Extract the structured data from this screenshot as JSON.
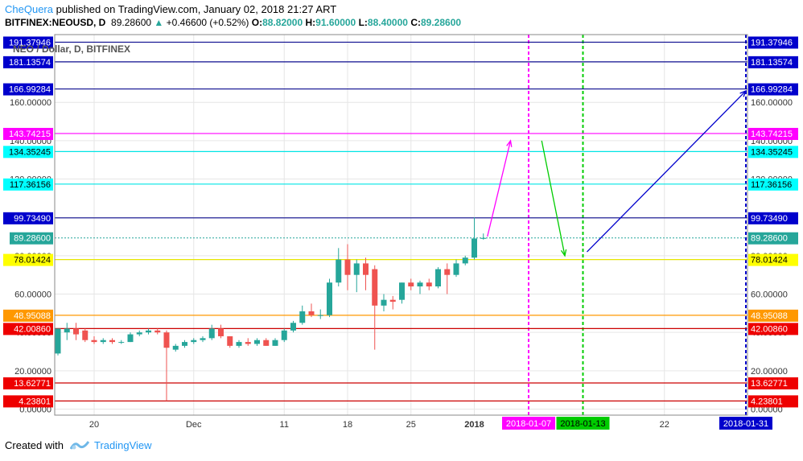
{
  "header": {
    "author": "CheQuera",
    "published_text": "published on TradingView.com, January 02, 2018 21:27 ART",
    "symbol": "BITFINEX:NEOUSD, D",
    "price": "89.28600",
    "change": "+0.46600 (+0.52%)",
    "o_label": "O:",
    "o_value": "88.82000",
    "h_label": "H:",
    "h_value": "91.60000",
    "l_label": "L:",
    "l_value": "88.40000",
    "c_label": "C:",
    "c_value": "89.28600"
  },
  "footer": {
    "created_with": "Created with",
    "brand": "TradingView"
  },
  "chart_data": {
    "type": "candlestick",
    "title": "NEO / Dollar, D, BITFINEX",
    "y_axis_ticks": [
      "0.00000",
      "20.00000",
      "40.00000",
      "60.00000",
      "80.00000",
      "100.00000",
      "120.00000",
      "140.00000",
      "160.00000"
    ],
    "x_axis_ticks": [
      "20",
      "Dec",
      "11",
      "18",
      "25",
      "2018",
      "22"
    ],
    "ylim": [
      0,
      194
    ],
    "candles": [
      {
        "o": 29,
        "h": 42,
        "l": 28,
        "c": 42
      },
      {
        "o": 40,
        "h": 45,
        "l": 36,
        "c": 42
      },
      {
        "o": 42,
        "h": 45,
        "l": 36,
        "c": 39
      },
      {
        "o": 41,
        "h": 42,
        "l": 35,
        "c": 36
      },
      {
        "o": 36,
        "h": 38,
        "l": 34,
        "c": 35
      },
      {
        "o": 35,
        "h": 37,
        "l": 34,
        "c": 36
      },
      {
        "o": 36,
        "h": 37,
        "l": 34,
        "c": 35
      },
      {
        "o": 35,
        "h": 36,
        "l": 34,
        "c": 35
      },
      {
        "o": 35,
        "h": 40,
        "l": 35,
        "c": 39
      },
      {
        "o": 39,
        "h": 41,
        "l": 38,
        "c": 40
      },
      {
        "o": 40,
        "h": 42,
        "l": 39,
        "c": 41
      },
      {
        "o": 41,
        "h": 42,
        "l": 39,
        "c": 40
      },
      {
        "o": 40,
        "h": 41,
        "l": 4.3,
        "c": 32
      },
      {
        "o": 31,
        "h": 34,
        "l": 30,
        "c": 33
      },
      {
        "o": 33,
        "h": 36,
        "l": 32,
        "c": 35
      },
      {
        "o": 35,
        "h": 37,
        "l": 34,
        "c": 36
      },
      {
        "o": 36,
        "h": 38,
        "l": 35,
        "c": 37
      },
      {
        "o": 37,
        "h": 44,
        "l": 36,
        "c": 42
      },
      {
        "o": 42,
        "h": 44,
        "l": 37,
        "c": 38
      },
      {
        "o": 38,
        "h": 38,
        "l": 32,
        "c": 33
      },
      {
        "o": 33,
        "h": 36,
        "l": 32,
        "c": 35
      },
      {
        "o": 35,
        "h": 37,
        "l": 33,
        "c": 34
      },
      {
        "o": 34,
        "h": 37,
        "l": 33,
        "c": 36
      },
      {
        "o": 36,
        "h": 37,
        "l": 33,
        "c": 33
      },
      {
        "o": 33,
        "h": 37,
        "l": 33,
        "c": 36
      },
      {
        "o": 36,
        "h": 42,
        "l": 35,
        "c": 41
      },
      {
        "o": 41,
        "h": 46,
        "l": 40,
        "c": 45
      },
      {
        "o": 45,
        "h": 54,
        "l": 44,
        "c": 51
      },
      {
        "o": 51,
        "h": 55,
        "l": 48,
        "c": 49
      },
      {
        "o": 49,
        "h": 52,
        "l": 47,
        "c": 49
      },
      {
        "o": 49,
        "h": 68,
        "l": 48,
        "c": 66
      },
      {
        "o": 66,
        "h": 84,
        "l": 64,
        "c": 78
      },
      {
        "o": 78,
        "h": 86,
        "l": 62,
        "c": 70
      },
      {
        "o": 70,
        "h": 78,
        "l": 61,
        "c": 76
      },
      {
        "o": 76,
        "h": 79,
        "l": 62,
        "c": 70
      },
      {
        "o": 73,
        "h": 75,
        "l": 31,
        "c": 54
      },
      {
        "o": 54,
        "h": 60,
        "l": 51,
        "c": 57
      },
      {
        "o": 57,
        "h": 59,
        "l": 52,
        "c": 56
      },
      {
        "o": 57,
        "h": 66,
        "l": 55,
        "c": 66
      },
      {
        "o": 66,
        "h": 68,
        "l": 62,
        "c": 64
      },
      {
        "o": 64,
        "h": 67,
        "l": 60,
        "c": 66
      },
      {
        "o": 66,
        "h": 68,
        "l": 62,
        "c": 64
      },
      {
        "o": 64,
        "h": 74,
        "l": 63,
        "c": 73
      },
      {
        "o": 73,
        "h": 76,
        "l": 60,
        "c": 70
      },
      {
        "o": 70,
        "h": 78,
        "l": 69,
        "c": 76
      },
      {
        "o": 76,
        "h": 80,
        "l": 75,
        "c": 79
      },
      {
        "o": 79,
        "h": 100,
        "l": 78,
        "c": 89
      },
      {
        "o": 88.82,
        "h": 91.6,
        "l": 88.4,
        "c": 89.286
      }
    ],
    "levels": [
      {
        "value": 191.37946,
        "label": "191.37946",
        "color": "#0d0d8f",
        "label_bg": "#0000cc",
        "label_fg": "#ffffff"
      },
      {
        "value": 181.13574,
        "label": "181.13574",
        "color": "#0d0d8f",
        "label_bg": "#0000cc",
        "label_fg": "#ffffff"
      },
      {
        "value": 166.99284,
        "label": "166.99284",
        "color": "#0d0d8f",
        "label_bg": "#0000cc",
        "label_fg": "#ffffff"
      },
      {
        "value": 143.74215,
        "label": "143.74215",
        "color": "#ff00ff",
        "label_bg": "#ff00ff",
        "label_fg": "#ffffff"
      },
      {
        "value": 134.35245,
        "label": "134.35245",
        "color": "#00e5e5",
        "label_bg": "#00ffff",
        "label_fg": "#000000"
      },
      {
        "value": 117.36156,
        "label": "117.36156",
        "color": "#00e5e5",
        "label_bg": "#00ffff",
        "label_fg": "#000000"
      },
      {
        "value": 99.7349,
        "label": "99.73490",
        "color": "#0d0d8f",
        "label_bg": "#0000cc",
        "label_fg": "#ffffff"
      },
      {
        "value": 78.01424,
        "label": "78.01424",
        "color": "#e6e600",
        "label_bg": "#ffff00",
        "label_fg": "#000000"
      },
      {
        "value": 48.95088,
        "label": "48.95088",
        "color": "#ff9800",
        "label_bg": "#ff9800",
        "label_fg": "#ffffff"
      },
      {
        "value": 42.0086,
        "label": "42.00860",
        "color": "#cc0000",
        "label_bg": "#ee0000",
        "label_fg": "#ffffff"
      },
      {
        "value": 13.62771,
        "label": "13.62771",
        "color": "#cc0000",
        "label_bg": "#ee0000",
        "label_fg": "#ffffff"
      },
      {
        "value": 4.23801,
        "label": "4.23801",
        "color": "#cc0000",
        "label_bg": "#ee0000",
        "label_fg": "#ffffff"
      }
    ],
    "current_price": {
      "value": 89.286,
      "label": "89.28600",
      "color": "#26a69a"
    },
    "vertical_lines": [
      {
        "date": "2018-01-07",
        "color": "#ff00ff"
      },
      {
        "date": "2018-01-13",
        "color": "#00cc00"
      },
      {
        "date": "2018-01-31",
        "color": "#0000cc"
      }
    ],
    "arrows": [
      {
        "color": "#ff00ff",
        "from": {
          "date": "2018-01-02",
          "value": 90
        },
        "to": {
          "date": "2018-01-05",
          "value": 140
        }
      },
      {
        "color": "#00cc00",
        "from": {
          "date": "2018-01-08",
          "value": 140
        },
        "to": {
          "date": "2018-01-11",
          "value": 80
        }
      },
      {
        "color": "#0000cc",
        "from": {
          "date": "2018-01-13",
          "value": 82
        },
        "to": {
          "date": "2018-01-31",
          "value": 166
        }
      }
    ],
    "colors": {
      "up": "#26a69a",
      "down": "#ef5350",
      "grid": "#e6e6e6"
    }
  }
}
